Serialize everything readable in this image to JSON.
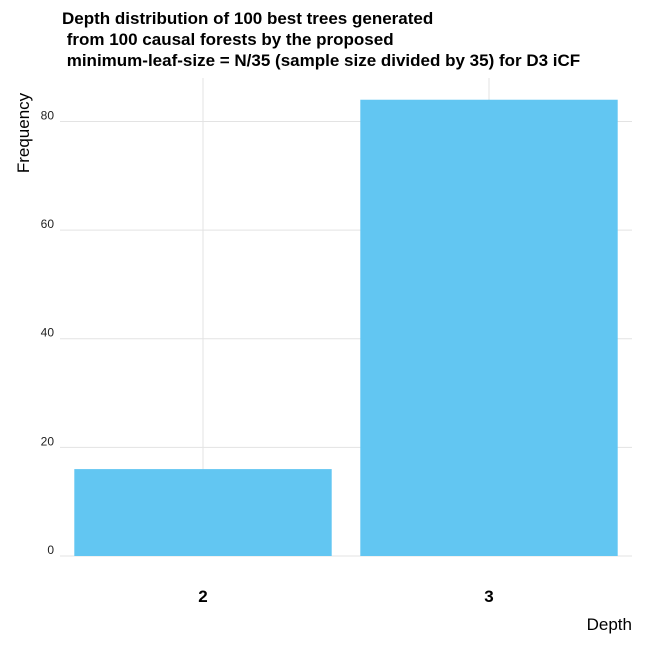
{
  "chart_data": {
    "type": "bar",
    "title_lines": [
      "Depth distribution of 100 best trees generated",
      " from 100 causal forests by the proposed",
      " minimum-leaf-size = N/35 (sample size divided by 35) for D3 iCF"
    ],
    "xlabel": "Depth",
    "ylabel": "Frequency",
    "categories": [
      "2",
      "3"
    ],
    "values": [
      16,
      84
    ],
    "yticks": [
      0,
      20,
      40,
      60,
      80
    ],
    "ylim": [
      0,
      88
    ],
    "bar_color": "#62C6F2",
    "grid": true,
    "legend": "none"
  }
}
